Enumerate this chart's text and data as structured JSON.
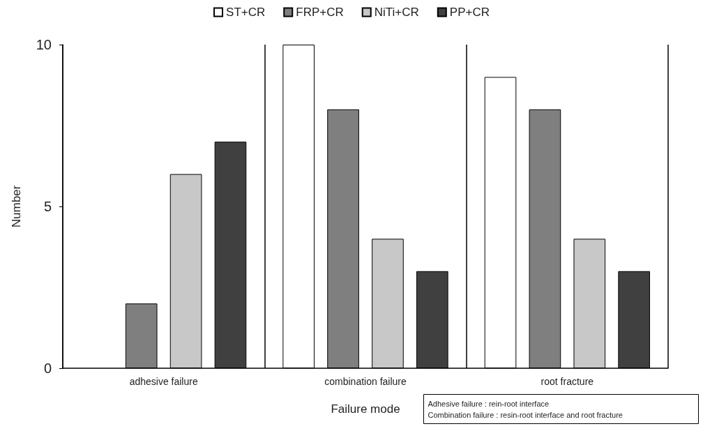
{
  "chart_data": {
    "type": "bar",
    "xlabel": "Failure mode",
    "ylabel": "Number",
    "categories": [
      "adhesive failure",
      "combination failure",
      "root fracture"
    ],
    "series": [
      {
        "name": "ST+CR",
        "color": "#ffffff",
        "values": [
          0,
          10,
          9
        ]
      },
      {
        "name": "FRP+CR",
        "color": "#7f7f7f",
        "values": [
          2,
          8,
          8
        ]
      },
      {
        "name": "NiTi+CR",
        "color": "#c8c8c8",
        "values": [
          6,
          4,
          4
        ]
      },
      {
        "name": "PP+CR",
        "color": "#404040",
        "values": [
          7,
          3,
          3
        ]
      }
    ],
    "ylim": [
      0,
      10
    ],
    "yticks": [
      0,
      5,
      10
    ],
    "grid": "x",
    "legend": "top",
    "annotations": [
      "Adhesive failure : rein-root interface",
      "Combination failure : resin-root interface and root fracture"
    ]
  }
}
